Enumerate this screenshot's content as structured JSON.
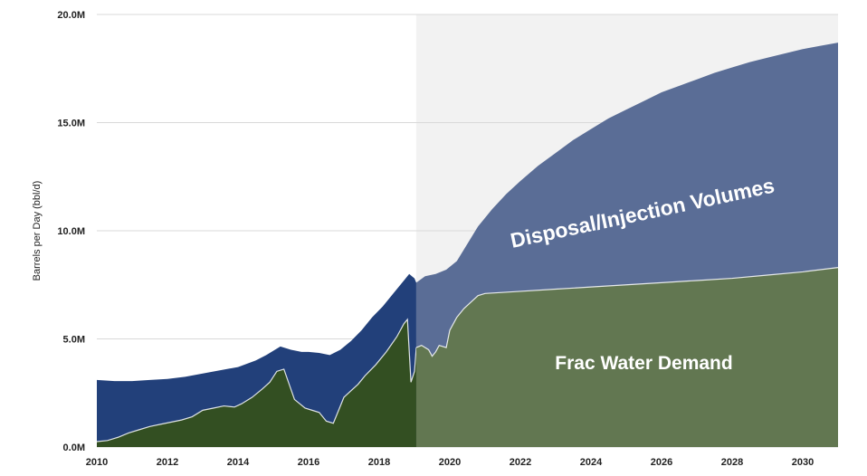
{
  "chart_data": {
    "type": "area",
    "title": "",
    "xlabel": "",
    "ylabel": "Barrels per Day (bbl/d)",
    "xlim": [
      2010,
      2031
    ],
    "ylim": [
      0,
      20000000
    ],
    "grid": true,
    "forecast_start": 2019.05,
    "x_ticks": [
      "2010",
      "2012",
      "2014",
      "2016",
      "2018",
      "2020",
      "2022",
      "2024",
      "2026",
      "2028",
      "2030"
    ],
    "y_ticks": [
      "0.0M",
      "5.0M",
      "10.0M",
      "15.0M",
      "20.0M"
    ],
    "colors": {
      "total_historical": "#22407a",
      "total_forecast": "#5a6d96",
      "frac_historical": "#334f22",
      "frac_forecast": "#627751",
      "forecast_shade": "#f2f2f2",
      "gridline": "#d9d9d9"
    },
    "annotations": [
      {
        "text": "Disposal/Injection Volumes",
        "x": 2025.5,
        "y": 10500000,
        "rotate": -12
      },
      {
        "text": "Frac Water Demand",
        "x": 2025.5,
        "y": 3600000,
        "rotate": 0
      }
    ],
    "series": [
      {
        "name": "Disposal/Injection Volumes",
        "x": [
          2010.0,
          2010.5,
          2011.0,
          2011.5,
          2012.0,
          2012.5,
          2013.0,
          2013.5,
          2014.0,
          2014.5,
          2014.8,
          2015.0,
          2015.2,
          2015.5,
          2015.8,
          2016.0,
          2016.3,
          2016.6,
          2016.9,
          2017.2,
          2017.5,
          2017.8,
          2018.1,
          2018.4,
          2018.7,
          2018.85,
          2019.0,
          2019.05,
          2019.3,
          2019.6,
          2019.9,
          2020.2,
          2020.5,
          2020.8,
          2021.2,
          2021.6,
          2022.0,
          2022.5,
          2023.0,
          2023.5,
          2024.0,
          2024.5,
          2025.0,
          2025.5,
          2026.0,
          2026.5,
          2027.0,
          2027.5,
          2028.0,
          2028.5,
          2029.0,
          2029.5,
          2030.0,
          2030.5,
          2031.0
        ],
        "values": [
          3100000,
          3050000,
          3050000,
          3100000,
          3150000,
          3250000,
          3400000,
          3550000,
          3700000,
          4000000,
          4250000,
          4450000,
          4650000,
          4500000,
          4400000,
          4400000,
          4350000,
          4250000,
          4500000,
          4900000,
          5400000,
          6000000,
          6500000,
          7100000,
          7700000,
          8000000,
          7800000,
          7600000,
          7900000,
          8000000,
          8200000,
          8600000,
          9400000,
          10200000,
          11000000,
          11700000,
          12300000,
          13000000,
          13600000,
          14200000,
          14700000,
          15200000,
          15600000,
          16000000,
          16400000,
          16700000,
          17000000,
          17300000,
          17550000,
          17800000,
          18000000,
          18200000,
          18400000,
          18550000,
          18700000
        ]
      },
      {
        "name": "Frac Water Demand",
        "x": [
          2010.0,
          2010.3,
          2010.6,
          2010.9,
          2011.2,
          2011.5,
          2011.8,
          2012.1,
          2012.4,
          2012.7,
          2013.0,
          2013.3,
          2013.6,
          2013.9,
          2014.1,
          2014.4,
          2014.7,
          2014.9,
          2015.1,
          2015.3,
          2015.6,
          2015.9,
          2016.1,
          2016.3,
          2016.5,
          2016.7,
          2016.9,
          2017.0,
          2017.2,
          2017.4,
          2017.6,
          2017.9,
          2018.2,
          2018.5,
          2018.7,
          2018.8,
          2018.9,
          2019.0,
          2019.05,
          2019.2,
          2019.4,
          2019.5,
          2019.6,
          2019.7,
          2019.9,
          2020.0,
          2020.2,
          2020.4,
          2020.6,
          2020.8,
          2021.0,
          2022.0,
          2023.0,
          2024.0,
          2025.0,
          2026.0,
          2027.0,
          2028.0,
          2029.0,
          2030.0,
          2031.0
        ],
        "values": [
          250000,
          300000,
          450000,
          650000,
          800000,
          950000,
          1050000,
          1150000,
          1250000,
          1400000,
          1700000,
          1800000,
          1900000,
          1850000,
          2000000,
          2300000,
          2700000,
          3000000,
          3500000,
          3600000,
          2200000,
          1800000,
          1700000,
          1600000,
          1200000,
          1100000,
          1900000,
          2300000,
          2600000,
          2900000,
          3300000,
          3800000,
          4400000,
          5100000,
          5700000,
          5900000,
          3000000,
          3500000,
          4600000,
          4700000,
          4500000,
          4200000,
          4400000,
          4700000,
          4600000,
          5400000,
          6000000,
          6400000,
          6700000,
          7000000,
          7100000,
          7200000,
          7300000,
          7400000,
          7500000,
          7600000,
          7700000,
          7800000,
          7950000,
          8100000,
          8300000
        ]
      }
    ]
  }
}
